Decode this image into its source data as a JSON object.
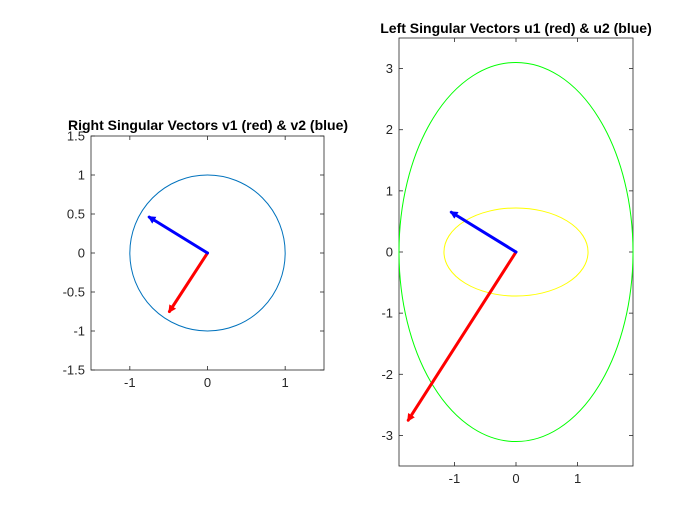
{
  "chart_data": [
    {
      "type": "line",
      "title": "Right Singular Vectors v1 (red) & v2 (blue)",
      "xlabel": "",
      "ylabel": "",
      "xlim": [
        -1.5,
        1.5
      ],
      "ylim": [
        -1.5,
        1.5
      ],
      "xticks": [
        -1,
        0,
        1
      ],
      "yticks": [
        -1.5,
        -1,
        -0.5,
        0,
        0.5,
        1,
        1.5
      ],
      "xtick_labels": [
        "-1",
        "0",
        "1"
      ],
      "ytick_labels": [
        "-1.5",
        "-1",
        "-0.5",
        "0",
        "0.5",
        "1",
        "1.5"
      ],
      "grid": false,
      "ellipses": [
        {
          "cx": 0,
          "cy": 0,
          "rx": 1,
          "ry": 1,
          "color": "#0072bd"
        }
      ],
      "vectors": [
        {
          "x": -0.49,
          "y": -0.75,
          "color": "#ff0000"
        },
        {
          "x": -0.75,
          "y": 0.46,
          "color": "#0000ff"
        }
      ]
    },
    {
      "type": "line",
      "title": "Left Singular Vectors u1 (red) & u2 (blue)",
      "xlabel": "",
      "ylabel": "",
      "xlim": [
        -1.9,
        1.9
      ],
      "ylim": [
        -3.5,
        3.5
      ],
      "xticks": [
        -1,
        0,
        1
      ],
      "yticks": [
        -3,
        -2,
        -1,
        0,
        1,
        2,
        3
      ],
      "xtick_labels": [
        "-1",
        "0",
        "1"
      ],
      "ytick_labels": [
        "-3",
        "-2",
        "-1",
        "0",
        "1",
        "2",
        "3"
      ],
      "grid": false,
      "ellipses": [
        {
          "cx": 0,
          "cy": 0,
          "rx": 1.9,
          "ry": 3.1,
          "color": "#00ff00"
        },
        {
          "cx": 0,
          "cy": 0,
          "rx": 1.17,
          "ry": 0.72,
          "color": "#ffff00"
        }
      ],
      "vectors": [
        {
          "x": -1.75,
          "y": -2.75,
          "color": "#ff0000"
        },
        {
          "x": -1.05,
          "y": 0.65,
          "color": "#0000ff"
        }
      ]
    }
  ]
}
